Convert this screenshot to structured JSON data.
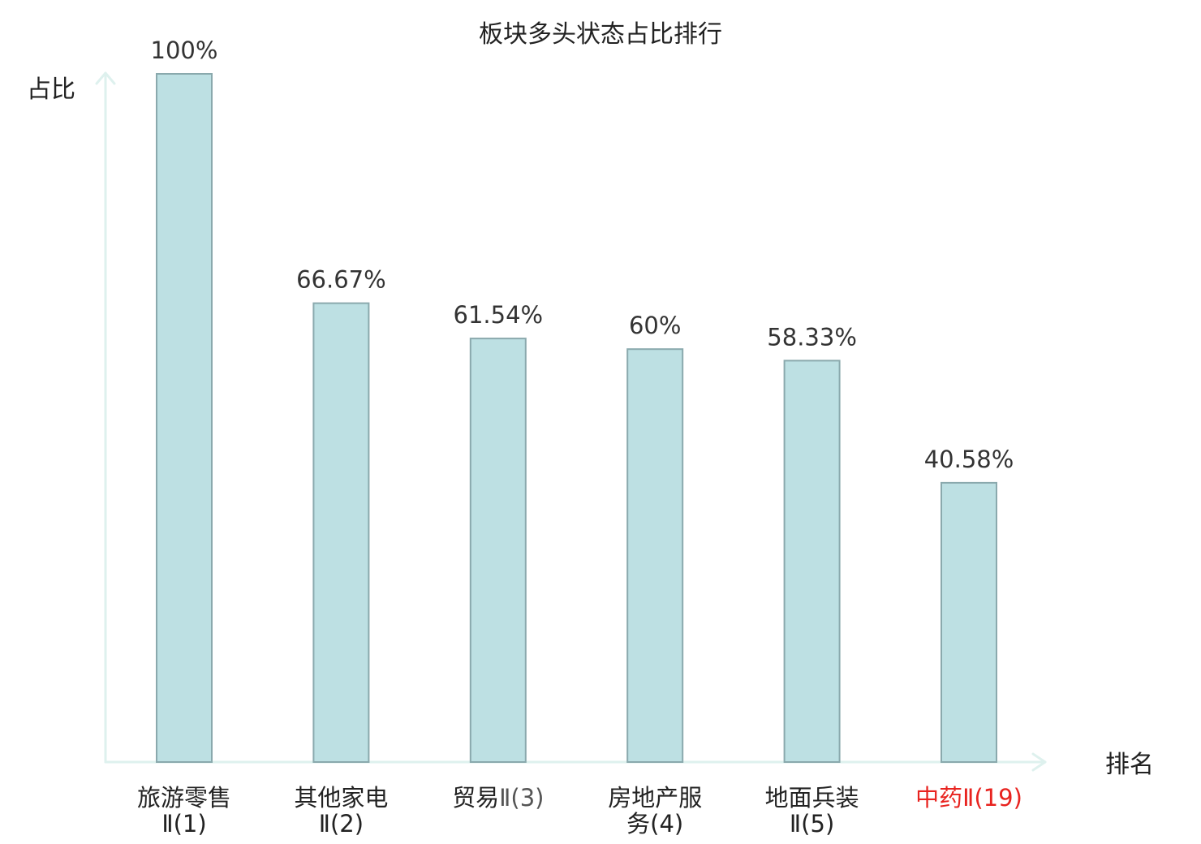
{
  "chart_data": {
    "type": "bar",
    "title": "板块多头状态占比排行",
    "ylabel": "占比",
    "xlabel": "排名",
    "ylim": [
      0,
      100
    ],
    "grid": false,
    "categories": [
      {
        "main": "旅游零售",
        "sub": "Ⅱ(1)",
        "highlight": false
      },
      {
        "main": "其他家电",
        "sub": "Ⅱ(2)",
        "highlight": false
      },
      {
        "main": "贸易",
        "sub": "Ⅱ(3)",
        "highlight": false
      },
      {
        "main": "房地产服",
        "sub": "务(4)",
        "highlight": false
      },
      {
        "main": "地面兵装",
        "sub": "Ⅱ(5)",
        "highlight": false
      },
      {
        "main": "中药",
        "sub": "Ⅱ(19)",
        "highlight": true
      }
    ],
    "values": [
      100,
      66.67,
      61.54,
      60,
      58.33,
      40.58
    ],
    "value_labels": [
      "100%",
      "66.67%",
      "61.54%",
      "60%",
      "58.33%",
      "40.58%"
    ],
    "colors": {
      "bar_fill": "#bde0e3",
      "bar_stroke": "#8aa9ad",
      "axis": "#def1ee",
      "highlight": "#e8231f"
    }
  }
}
